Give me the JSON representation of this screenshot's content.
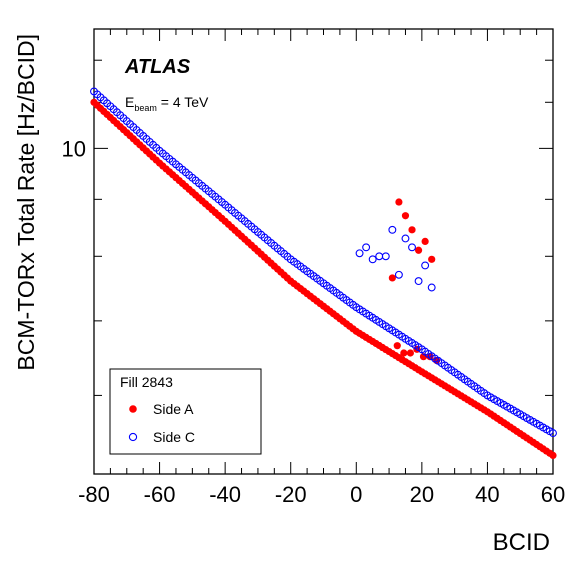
{
  "chart_data": {
    "type": "scatter",
    "title": "",
    "experiment_label": "ATLAS",
    "beam_label_prefix": "E",
    "beam_label_subscript": "beam",
    "beam_label_suffix": " = 4 TeV",
    "xlabel": "BCID",
    "ylabel": "BCM-TORx Total Rate [Hz/BCID]",
    "xlim": [
      -80,
      60
    ],
    "ylim": [
      5.1,
      12.8
    ],
    "y_scale": "log",
    "x_ticks": [
      -80,
      -60,
      -40,
      -20,
      0,
      20,
      40,
      60
    ],
    "y_tick_labels": [
      "10"
    ],
    "grid": false,
    "legend": {
      "title": "Fill 2843",
      "placement": "bottom-left",
      "entries": [
        "Side A",
        "Side C"
      ]
    },
    "series": [
      {
        "name": "Side A",
        "marker": "filled-circle",
        "color": "#ff0000",
        "trend": {
          "x": [
            -80,
            -60,
            -40,
            -20,
            0,
            20,
            40,
            60
          ],
          "y": [
            11.0,
            9.7,
            8.6,
            7.6,
            6.85,
            6.3,
            5.8,
            5.3
          ]
        },
        "points": [
          [
            12.5,
            6.65
          ],
          [
            14.5,
            6.55
          ],
          [
            16.5,
            6.55
          ],
          [
            18.5,
            6.6
          ],
          [
            20.5,
            6.5
          ],
          [
            22.5,
            6.5
          ],
          [
            24.5,
            6.45
          ]
        ],
        "peaks": [
          [
            11,
            7.65
          ],
          [
            13,
            8.95
          ],
          [
            15,
            8.7
          ],
          [
            17,
            8.45
          ],
          [
            19,
            8.1
          ],
          [
            21,
            8.25
          ],
          [
            23,
            7.95
          ]
        ]
      },
      {
        "name": "Side C",
        "marker": "open-circle",
        "color": "#0000ff",
        "trend": {
          "x": [
            -80,
            -60,
            -40,
            -20,
            0,
            20,
            40,
            60
          ],
          "y": [
            11.25,
            9.95,
            8.9,
            7.95,
            7.2,
            6.6,
            6.0,
            5.55
          ]
        },
        "points": [],
        "peaks": [
          [
            1,
            8.05
          ],
          [
            3,
            8.15
          ],
          [
            5,
            7.95
          ],
          [
            7,
            8.0
          ],
          [
            9,
            8.0
          ],
          [
            11,
            8.45
          ],
          [
            13,
            7.7
          ],
          [
            15,
            8.3
          ],
          [
            17,
            8.15
          ],
          [
            19,
            7.6
          ],
          [
            21,
            7.85
          ],
          [
            23,
            7.5
          ]
        ]
      }
    ]
  }
}
